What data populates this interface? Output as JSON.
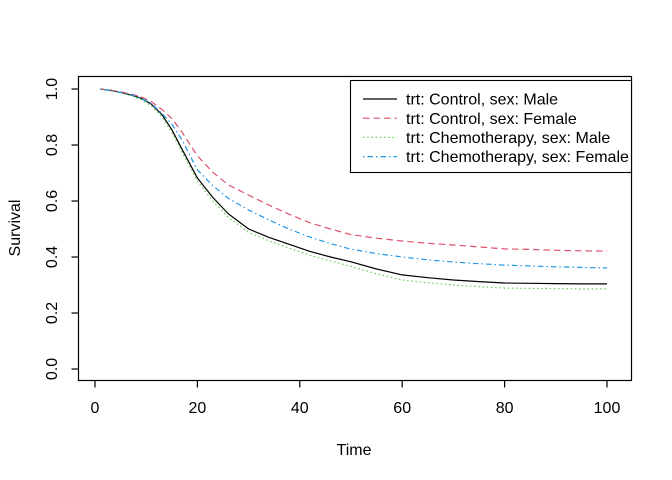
{
  "figure": {
    "background": "#ffffff",
    "border_color": "#000000"
  },
  "chart_data": {
    "type": "line",
    "title": "",
    "xlabel": "Time",
    "ylabel": "Survival",
    "xlim": [
      0,
      100
    ],
    "ylim": [
      0.0,
      1.0
    ],
    "x_ticks": [
      "0",
      "20",
      "40",
      "60",
      "80",
      "100"
    ],
    "y_ticks": [
      "0.0",
      "0.2",
      "0.4",
      "0.6",
      "0.8",
      "1.0"
    ],
    "grid": "off",
    "legend_position": "top-right",
    "legend_border": true,
    "x": [
      1,
      3,
      5,
      7,
      9,
      11,
      13,
      15,
      17,
      20,
      23,
      26,
      30,
      34,
      38,
      42,
      46,
      50,
      55,
      60,
      65,
      70,
      75,
      80,
      85,
      90,
      95,
      100
    ],
    "series": [
      {
        "name": "trt: Control, sex: Male",
        "color": "#000000",
        "linestyle": "solid",
        "y": [
          1.0,
          0.995,
          0.988,
          0.979,
          0.967,
          0.946,
          0.91,
          0.855,
          0.785,
          0.682,
          0.613,
          0.555,
          0.5,
          0.47,
          0.445,
          0.42,
          0.4,
          0.383,
          0.357,
          0.336,
          0.326,
          0.318,
          0.312,
          0.307,
          0.306,
          0.305,
          0.304,
          0.304
        ]
      },
      {
        "name": "trt: Control, sex: Female",
        "color": "#DF536B",
        "linestyle": "dashed",
        "y": [
          1.0,
          0.996,
          0.99,
          0.982,
          0.972,
          0.955,
          0.928,
          0.895,
          0.846,
          0.761,
          0.703,
          0.658,
          0.621,
          0.585,
          0.552,
          0.522,
          0.5,
          0.48,
          0.467,
          0.457,
          0.449,
          0.443,
          0.436,
          0.429,
          0.427,
          0.424,
          0.422,
          0.421
        ]
      },
      {
        "name": "trt: Chemotherapy, sex: Male",
        "color": "#61D04F",
        "linestyle": "dotted",
        "y": [
          1.0,
          0.994,
          0.986,
          0.976,
          0.962,
          0.94,
          0.902,
          0.846,
          0.775,
          0.671,
          0.6,
          0.542,
          0.488,
          0.457,
          0.431,
          0.406,
          0.386,
          0.366,
          0.34,
          0.318,
          0.308,
          0.3,
          0.294,
          0.289,
          0.288,
          0.287,
          0.286,
          0.286
        ]
      },
      {
        "name": "trt: Chemotherapy, sex: Female",
        "color": "#2297E6",
        "linestyle": "dashdot",
        "y": [
          1.0,
          0.995,
          0.988,
          0.98,
          0.968,
          0.948,
          0.914,
          0.875,
          0.818,
          0.711,
          0.655,
          0.61,
          0.568,
          0.532,
          0.499,
          0.471,
          0.448,
          0.428,
          0.412,
          0.4,
          0.39,
          0.382,
          0.376,
          0.371,
          0.368,
          0.365,
          0.363,
          0.361
        ]
      }
    ]
  }
}
